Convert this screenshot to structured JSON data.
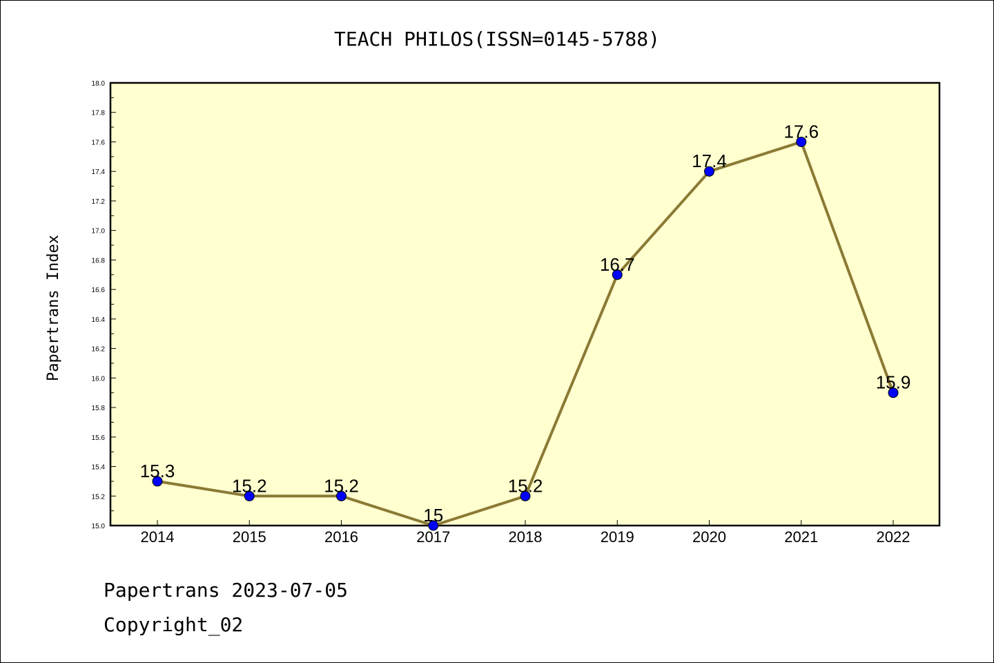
{
  "footer": {
    "line1": "Papertrans 2023-07-05",
    "line2": "Copyright_02"
  },
  "colors": {
    "plot_background": "#ffffd0",
    "line": "#8b7a35",
    "marker": "#0000ff"
  },
  "chart_data": {
    "type": "line",
    "title": "TEACH PHILOS(ISSN=0145-5788)",
    "xlabel": "",
    "ylabel": "Papertrans Index",
    "categories": [
      "2014",
      "2015",
      "2016",
      "2017",
      "2018",
      "2019",
      "2020",
      "2021",
      "2022"
    ],
    "series": [
      {
        "values": [
          15.3,
          15.2,
          15.2,
          15.0,
          15.2,
          16.7,
          17.4,
          17.6,
          15.9
        ]
      }
    ],
    "data_labels": [
      "15.3",
      "15.2",
      "15.2",
      "15",
      "15.2",
      "16.7",
      "17.4",
      "17.6",
      "15.9"
    ],
    "ylim": [
      15.0,
      18.0
    ],
    "yticks": [
      "15.0",
      "15.2",
      "15.4",
      "15.6",
      "15.8",
      "16.0",
      "16.2",
      "16.4",
      "16.6",
      "16.8",
      "17.0",
      "17.2",
      "17.4",
      "17.6",
      "17.8",
      "18.0"
    ],
    "grid": false,
    "legend": "none"
  }
}
